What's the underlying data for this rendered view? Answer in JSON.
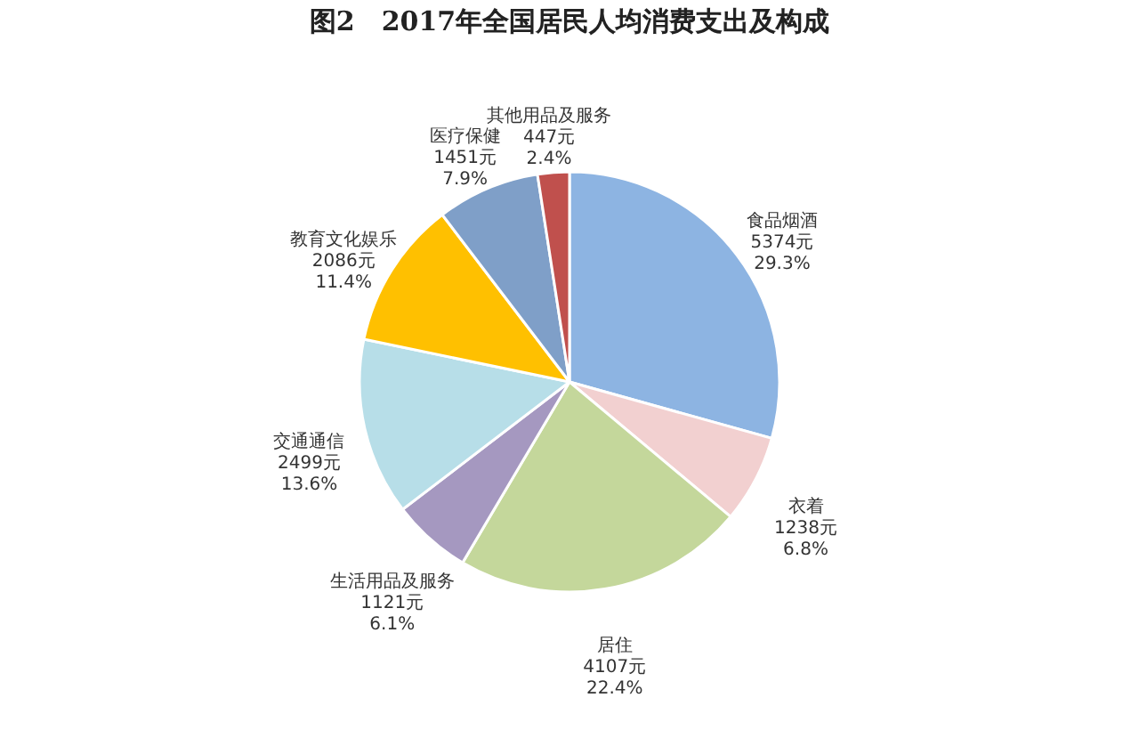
{
  "chart_data": {
    "type": "pie",
    "title": "图2　2017年全国居民人均消费支出及构成",
    "categories": [
      "食品烟酒",
      "衣着",
      "居住",
      "生活用品及服务",
      "交通通信",
      "教育文化娱乐",
      "医疗保健",
      "其他用品及服务"
    ],
    "values": [
      5374,
      1238,
      4107,
      1121,
      2499,
      2086,
      1451,
      447
    ],
    "value_labels": [
      "5374元\n29.3%",
      "1238元\n6.8%",
      "4107元\n22.4%",
      "1121元\n6.1%",
      "2499元\n13.6%",
      "2086元\n11.4%",
      "1451元\n7.9%",
      "447元\n2.4%"
    ],
    "colors": [
      "#8db4e2",
      "#f2d0d0",
      "#c4d79b",
      "#a598c0",
      "#b7dee8",
      "#ffc000",
      "#7f9fc8",
      "#c0504d"
    ],
    "legend": false
  }
}
